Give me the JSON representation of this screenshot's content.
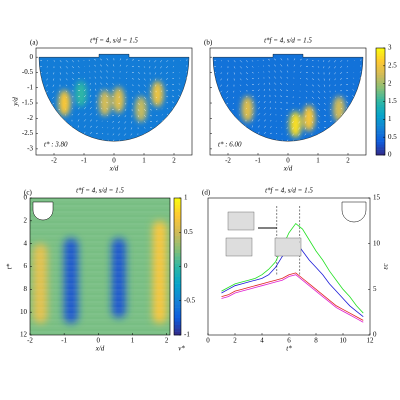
{
  "chart_data": [
    {
      "type": "field",
      "label": "(a)",
      "title": "t*f = 4, s/d = 1.5",
      "annotation": "t* : 3.80",
      "xlabel": "x/d",
      "ylabel": "y/d",
      "xlim": [
        -2.6,
        2.6
      ],
      "ylim": [
        -3.2,
        0.3
      ],
      "xticks": [
        -2,
        -1,
        0,
        1,
        2
      ],
      "yticks": [
        0,
        -0.5,
        -1,
        -1.5,
        -2,
        -2.5,
        -3
      ],
      "background_value": 0.7,
      "peaks": [
        {
          "x": -1.65,
          "y": -1.5,
          "value": 2.6
        },
        {
          "x": -0.3,
          "y": -1.5,
          "value": 2.3
        },
        {
          "x": 0.15,
          "y": -1.4,
          "value": 2.4
        },
        {
          "x": 0.9,
          "y": -1.7,
          "value": 2.2
        },
        {
          "x": 1.45,
          "y": -1.2,
          "value": 2.5
        },
        {
          "x": -1.1,
          "y": -1.2,
          "value": 1.5
        }
      ]
    },
    {
      "type": "field",
      "label": "(b)",
      "title": "t*f = 4, s/d = 1.5",
      "annotation": "t* : 6.00",
      "xlabel": "x/d",
      "xlim": [
        -2.6,
        2.6
      ],
      "ylim": [
        -3.2,
        0.3
      ],
      "xticks": [
        -2,
        -1,
        0,
        1,
        2
      ],
      "yticks": [
        0,
        -0.5,
        -1,
        -1.5,
        -2,
        -2.5,
        -3
      ],
      "background_value": 0.6,
      "peaks": [
        {
          "x": -1.35,
          "y": -1.7,
          "value": 2.4
        },
        {
          "x": 0.25,
          "y": -2.2,
          "value": 2.8
        },
        {
          "x": 0.7,
          "y": -2.0,
          "value": 2.6
        },
        {
          "x": 1.7,
          "y": -1.7,
          "value": 2.3
        }
      ],
      "colorbar": {
        "lim": [
          0,
          3
        ],
        "ticks": [
          0,
          0.5,
          1,
          1.5,
          2,
          2.5,
          3
        ]
      }
    },
    {
      "type": "spacetime",
      "label": "(c)",
      "title": "t*f = 4, s/d = 1.5",
      "xlabel": "x/d",
      "ylabel": "t*",
      "xlim": [
        -2,
        2.1
      ],
      "ylim": [
        0,
        12
      ],
      "xticks": [
        -2,
        -1,
        0,
        1,
        2
      ],
      "yticks": [
        0,
        2,
        4,
        6,
        8,
        10,
        12
      ],
      "background_value": 0.2,
      "bands": [
        {
          "x": -0.8,
          "t0": 3.5,
          "t1": 11,
          "value": -0.8
        },
        {
          "x": 0.6,
          "t0": 3.5,
          "t1": 10.5,
          "value": -0.8
        },
        {
          "x": -1.7,
          "t0": 4,
          "t1": 11,
          "value": 0.6
        },
        {
          "x": 1.8,
          "t0": 2,
          "t1": 11,
          "value": 0.7
        }
      ],
      "colorbar": {
        "lim": [
          -1,
          1
        ],
        "ticks": [
          -1,
          -0.5,
          0,
          0.5,
          1
        ],
        "label": "v*"
      }
    },
    {
      "type": "line",
      "label": "(d)",
      "title": "t*f = 4, s/d = 1.5",
      "xlabel": "t*",
      "ylabel": "εc",
      "yaxis_side": "right",
      "xlim": [
        0,
        12
      ],
      "ylim": [
        0,
        15
      ],
      "xticks": [
        0,
        2,
        4,
        6,
        8,
        10,
        12
      ],
      "yticks": [
        0,
        5,
        10,
        15
      ],
      "markers": [
        5.1,
        6.8
      ],
      "x": [
        1,
        1.5,
        2,
        2.5,
        3,
        3.5,
        4,
        4.5,
        5,
        5.5,
        6,
        6.5,
        7,
        7.5,
        8,
        8.5,
        9,
        9.5,
        10,
        10.5,
        11,
        11.5
      ],
      "series": [
        {
          "color": "#22e022",
          "values": [
            4.8,
            5.2,
            5.6,
            5.8,
            6.0,
            6.2,
            6.6,
            7.2,
            8.0,
            9.6,
            11.2,
            12.2,
            11.6,
            10.4,
            9.2,
            8.2,
            7.0,
            6.0,
            5.0,
            4.2,
            3.2,
            2.4
          ]
        },
        {
          "color": "#1a1ad8",
          "values": [
            4.6,
            5.0,
            5.4,
            5.6,
            5.8,
            6.0,
            6.2,
            6.6,
            7.4,
            8.6,
            9.6,
            10.2,
            9.2,
            8.2,
            7.4,
            6.6,
            5.6,
            4.8,
            4.0,
            3.2,
            2.6,
            2.0
          ]
        },
        {
          "color": "#e02020",
          "values": [
            4.2,
            4.4,
            4.8,
            5.0,
            5.2,
            5.4,
            5.6,
            5.8,
            6.0,
            6.2,
            6.6,
            6.8,
            6.2,
            5.6,
            5.0,
            4.4,
            3.8,
            3.2,
            2.8,
            2.4,
            2.0,
            1.6
          ]
        },
        {
          "color": "#e020d0",
          "values": [
            4.0,
            4.2,
            4.6,
            4.8,
            5.0,
            5.2,
            5.4,
            5.6,
            5.8,
            6.0,
            6.4,
            6.6,
            6.0,
            5.4,
            4.8,
            4.2,
            3.6,
            3.0,
            2.6,
            2.2,
            1.8,
            1.4
          ]
        }
      ]
    }
  ]
}
